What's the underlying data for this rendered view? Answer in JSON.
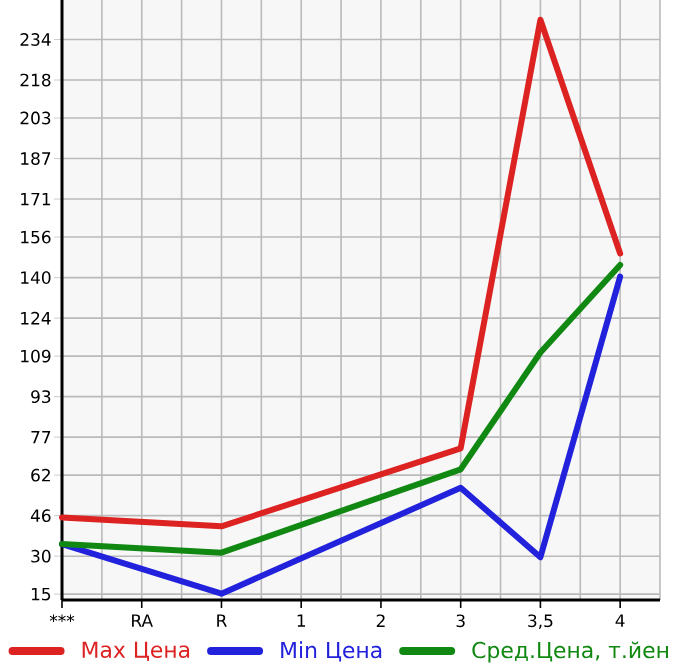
{
  "chart_data": {
    "type": "line",
    "categories": [
      "***",
      "RA",
      "R",
      "1",
      "2",
      "3",
      "3,5",
      "4"
    ],
    "series": [
      {
        "name": "Max Цена",
        "color": "#dd2222",
        "values": [
          45.3,
          null,
          41.8,
          null,
          null,
          72.6,
          241.8,
          149.5
        ]
      },
      {
        "name": "Min Цена",
        "color": "#2222dd",
        "values": [
          34.8,
          null,
          15.2,
          null,
          null,
          57,
          29.6,
          140.4
        ]
      },
      {
        "name": "Сред.Цена, т.йен",
        "color": "#118811",
        "values": [
          34.8,
          null,
          31.4,
          null,
          null,
          64.3,
          110.4,
          145
        ]
      }
    ],
    "ylim": [
      12.7,
      249.6
    ],
    "yticks": [
      15,
      30,
      46,
      62,
      77,
      93,
      109,
      124,
      140,
      156,
      171,
      187,
      203,
      218,
      234
    ],
    "grid": true,
    "legend": "bottom",
    "marker": "none",
    "line_style": "solid"
  }
}
